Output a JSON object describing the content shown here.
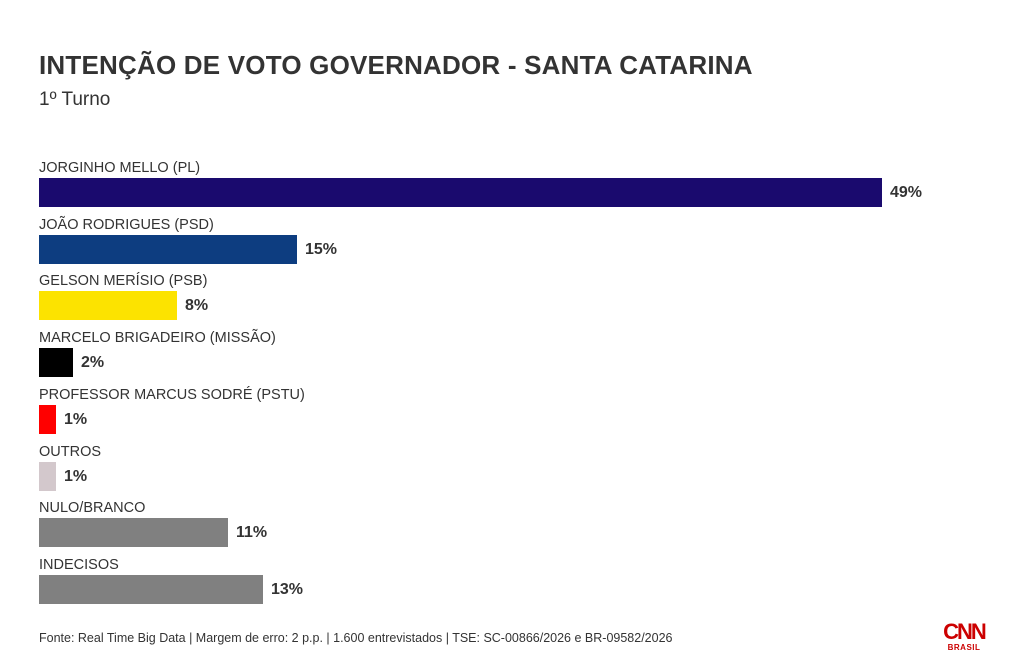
{
  "header": {
    "title": "INTENÇÃO DE VOTO GOVERNADOR - SANTA CATARINA",
    "subtitle": "1º Turno"
  },
  "chart_data": {
    "type": "bar",
    "orientation": "horizontal",
    "title": "INTENÇÃO DE VOTO GOVERNADOR - SANTA CATARINA",
    "subtitle": "1º Turno",
    "xlabel": "",
    "ylabel": "",
    "grid": false,
    "xlim": [
      0,
      49
    ],
    "categories": [
      "JORGINHO MELLO (PL)",
      "JOÃO RODRIGUES (PSD)",
      "GELSON MERÍSIO (PSB)",
      "MARCELO BRIGADEIRO (MISSÃO)",
      "PROFESSOR MARCUS SODRÉ (PSTU)",
      "OUTROS",
      "NULO/BRANCO",
      "INDECISOS"
    ],
    "values": [
      49,
      15,
      8,
      2,
      1,
      1,
      11,
      13
    ],
    "value_labels": [
      "49%",
      "15%",
      "8%",
      "2%",
      "1%",
      "1%",
      "11%",
      "13%"
    ],
    "colors": [
      "#1a0a6e",
      "#0d3d80",
      "#fce300",
      "#000000",
      "#ff0000",
      "#d3c8cc",
      "#808080",
      "#808080"
    ]
  },
  "footer": {
    "source": "Fonte: Real Time Big Data | Margem de erro: 2 p.p. | 1.600 entrevistados | TSE: SC-00866/2026 e BR-09582/2026"
  },
  "logo": {
    "brand": "CNN",
    "sub": "BRASIL",
    "color": "#cc0000"
  }
}
